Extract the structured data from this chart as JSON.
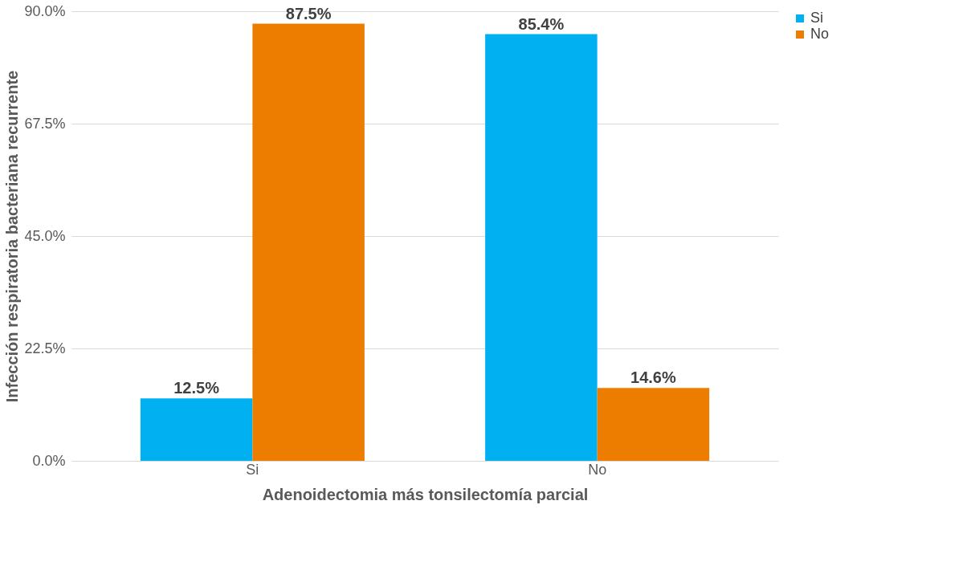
{
  "chart_data": {
    "type": "bar",
    "xlabel": "Adenoidectomia más tonsilectomía parcial",
    "ylabel": "Infección respiratoria bacteriana recurrente",
    "categories": [
      "Si",
      "No"
    ],
    "series": [
      {
        "name": "Si",
        "color": "#00b0f0",
        "values": [
          12.5,
          85.4
        ],
        "value_labels": [
          "12.5%",
          "85.4%"
        ]
      },
      {
        "name": "No",
        "color": "#ed7d00",
        "values": [
          87.5,
          14.6
        ],
        "value_labels": [
          "87.5%",
          "14.6%"
        ]
      }
    ],
    "ylim": [
      0,
      90
    ],
    "yticks": [
      {
        "value": 0,
        "label": "0.0%"
      },
      {
        "value": 22.5,
        "label": "22.5%"
      },
      {
        "value": 45,
        "label": "45.0%"
      },
      {
        "value": 67.5,
        "label": "67.5%"
      },
      {
        "value": 90,
        "label": "90.0%"
      }
    ],
    "grid": "y",
    "legend": "right"
  }
}
